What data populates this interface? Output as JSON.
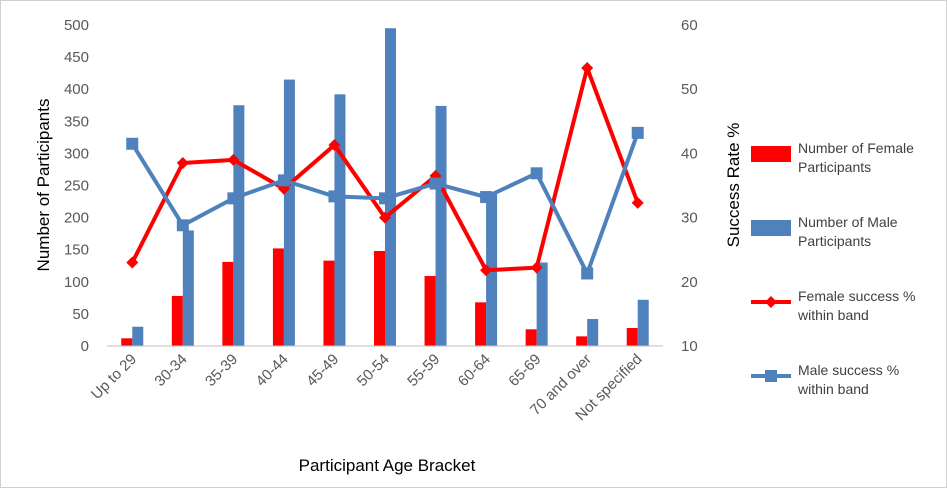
{
  "chart_data": {
    "type": "bar",
    "categories": [
      "Up to 29",
      "30-34",
      "35-39",
      "40-44",
      "45-49",
      "50-54",
      "55-59",
      "60-64",
      "65-69",
      "70 and over",
      "Not specified"
    ],
    "xlabel": "Participant Age Bracket",
    "ylabel": "Number of Participants",
    "y2label": "Success Rate %",
    "ylim": [
      0,
      500
    ],
    "y2lim": [
      10,
      60
    ],
    "yticks": [
      "0",
      "50",
      "100",
      "150",
      "200",
      "250",
      "300",
      "350",
      "400",
      "450",
      "500"
    ],
    "y2ticks": [
      "10",
      "20",
      "30",
      "40",
      "50",
      "60"
    ],
    "grid": false,
    "legend_position": "right",
    "series": [
      {
        "name": "Number of Female Participants",
        "legend_lines": [
          "Number of Female",
          "Participants"
        ],
        "kind": "bar",
        "axis": "left",
        "color": "#ff0000",
        "values": [
          12,
          78,
          131,
          152,
          133,
          148,
          109,
          68,
          26,
          15,
          28
        ]
      },
      {
        "name": "Number of Male Participants",
        "legend_lines": [
          "Number of Male",
          "Participants"
        ],
        "kind": "bar",
        "axis": "left",
        "color": "#4f81bd",
        "values": [
          30,
          180,
          375,
          415,
          392,
          495,
          374,
          238,
          130,
          42,
          72
        ]
      },
      {
        "name": "Female success % within band",
        "legend_lines": [
          "Female success %",
          "within band"
        ],
        "kind": "line",
        "marker": "diamond",
        "axis": "right",
        "color": "#ff0000",
        "values": [
          23,
          38.5,
          39,
          34.5,
          41.3,
          30,
          36.5,
          21.8,
          22.2,
          53.3,
          32.3
        ]
      },
      {
        "name": "Male success % within band",
        "legend_lines": [
          "Male success %",
          "within band"
        ],
        "kind": "line",
        "marker": "square",
        "axis": "right",
        "color": "#4f81bd",
        "values": [
          41.5,
          28.8,
          33,
          35.8,
          33.3,
          33,
          35.3,
          33.2,
          36.9,
          21.3,
          43.2
        ]
      }
    ]
  }
}
